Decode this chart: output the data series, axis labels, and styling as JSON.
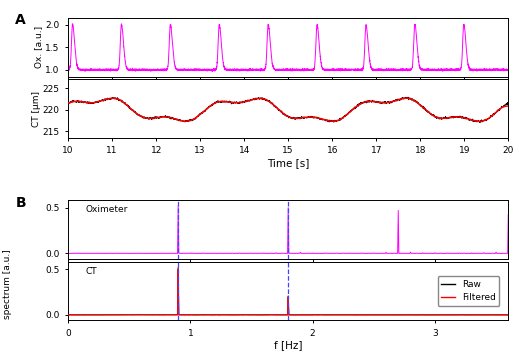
{
  "panel_A_label": "A",
  "panel_B_label": "B",
  "ox_ylabel": "Ox. [a.u.]",
  "ct_ylabel": "CT [μm]",
  "time_xlabel": "Time [s]",
  "spectrum_ylabel": "spectrum [a.u.]",
  "freq_xlabel": "f [Hz]",
  "ox_label": "Oximeter",
  "ct_label": "CT",
  "raw_label": "Raw",
  "filtered_label": "Filtered",
  "time_xlim": [
    10,
    20
  ],
  "time_xticks": [
    10,
    11,
    12,
    13,
    14,
    15,
    16,
    17,
    18,
    19,
    20
  ],
  "ox_ylim": [
    0.85,
    2.15
  ],
  "ox_yticks": [
    1.0,
    1.5,
    2.0
  ],
  "ct_ylim": [
    213.5,
    227.0
  ],
  "ct_yticks": [
    215,
    220,
    225
  ],
  "freq_xlim": [
    0,
    3.6
  ],
  "freq_xticks": [
    0,
    1,
    2,
    3
  ],
  "ox_spectrum_ylim": [
    -0.06,
    0.58
  ],
  "ct_spectrum_ylim": [
    -0.06,
    0.58
  ],
  "spectrum_yticks": [
    0,
    0.5
  ],
  "heart_rate_hz": 0.9,
  "resp_rate_hz": 1.8,
  "ox_color": "#ff00ff",
  "ct_raw_color": "#000000",
  "ct_filtered_color": "#ff0000",
  "dashed_line_color": "#4444ff",
  "background_color": "#ffffff"
}
